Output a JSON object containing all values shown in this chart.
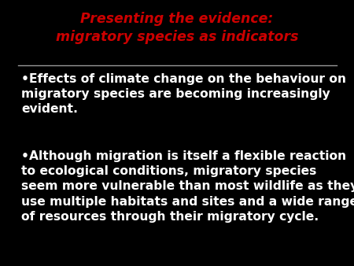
{
  "background_color": "#000000",
  "title_line1": "Presenting the evidence:",
  "title_line2": "migratory species as indicators",
  "title_color": "#cc0000",
  "title_fontsize": 12.5,
  "line_color": "#999999",
  "bullet1_line1": "•Effects of climate change on the behaviour on",
  "bullet1_line2": "migratory species are becoming increasingly",
  "bullet1_line3": "evident.",
  "bullet2_line1": "•Although migration is itself a flexible reaction",
  "bullet2_line2": "to ecological conditions, migratory species",
  "bullet2_line3": "seem more vulnerable than most wildlife as they",
  "bullet2_line4": "use multiple habitats and sites and a wide range",
  "bullet2_line5": "of resources through their migratory cycle.",
  "body_color": "#ffffff",
  "body_fontsize": 11.2
}
